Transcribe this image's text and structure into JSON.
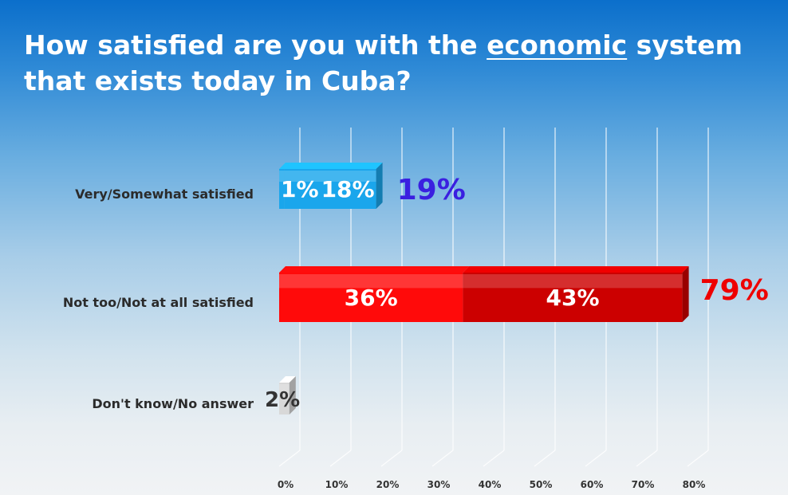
{
  "title": {
    "before": "How satisfied are you with the ",
    "emphasis": "economic",
    "after": " system that exists today in Cuba?"
  },
  "colors": {
    "satisfied": "#1aa6ec",
    "satisfied_total": "#3a1fe0",
    "dissatisfied_light": "#ff0a0a",
    "dissatisfied_dark": "#cc0000",
    "dissatisfied_total": "#ee0000",
    "dont_know": "#d8d8d8"
  },
  "chart_data": {
    "type": "bar",
    "orientation": "horizontal",
    "stacked": true,
    "categories": [
      "Very/Somewhat satisfied",
      "Not too/Not at all satisfied",
      "Don't know/No answer"
    ],
    "segments": [
      {
        "category": "Very/Somewhat satisfied",
        "values": [
          1,
          18
        ],
        "labels": [
          "1%",
          "18%"
        ],
        "colors": [
          "#1aa6ec",
          "#1aa6ec"
        ]
      },
      {
        "category": "Not too/Not at all satisfied",
        "values": [
          36,
          43
        ],
        "labels": [
          "36%",
          "43%"
        ],
        "colors": [
          "#ff0a0a",
          "#cc0000"
        ]
      },
      {
        "category": "Don't know/No answer",
        "values": [
          2
        ],
        "labels": [
          "2%"
        ],
        "colors": [
          "#d8d8d8"
        ]
      }
    ],
    "totals": [
      {
        "category": "Very/Somewhat satisfied",
        "value": 19,
        "label": "19%",
        "color": "#3a1fe0"
      },
      {
        "category": "Not too/Not at all satisfied",
        "value": 79,
        "label": "79%",
        "color": "#ee0000"
      }
    ],
    "xlim": [
      0,
      80
    ],
    "xticks": [
      "0%",
      "10%",
      "20%",
      "30%",
      "40%",
      "50%",
      "60%",
      "70%",
      "80%"
    ],
    "grid": true
  }
}
